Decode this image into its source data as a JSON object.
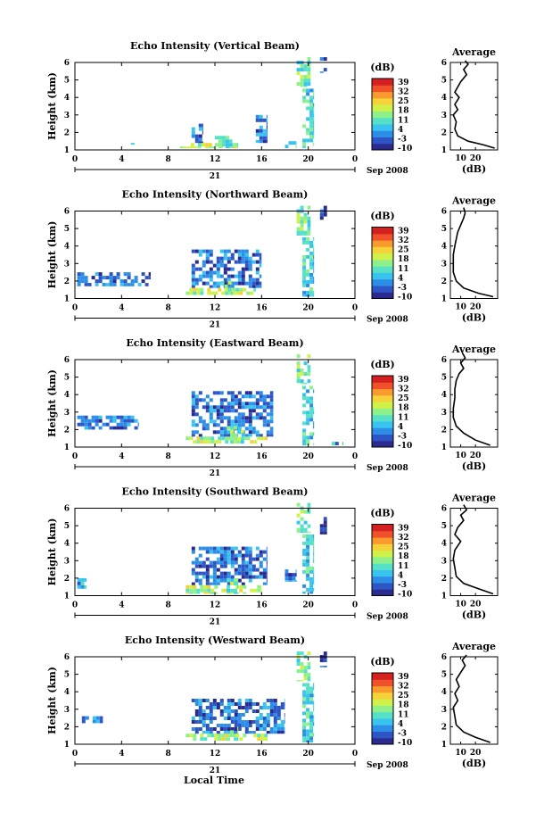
{
  "figure": {
    "xlabel": "Local Time",
    "date_label": "Sep 2008",
    "day_label": "21"
  },
  "colorbar": {
    "unit": "(dB)",
    "ticks": [
      "39",
      "32",
      "25",
      "18",
      "11",
      "4",
      "-3",
      "-10"
    ],
    "colors": [
      "#2b2a8f",
      "#2d55c6",
      "#2d8ee8",
      "#39c4f0",
      "#56e0c8",
      "#8ef08a",
      "#d0f04a",
      "#f6d23a",
      "#f89a2e",
      "#f0502a",
      "#d42020"
    ]
  },
  "chart_data": [
    {
      "type": "heatmap",
      "title": "Echo Intensity (Vertical Beam)",
      "ylabel": "Height (km)",
      "xlim": [
        0,
        24
      ],
      "ylim": [
        1,
        6
      ],
      "xticks": [
        "0",
        "4",
        "8",
        "12",
        "16",
        "20",
        "0"
      ],
      "yticks": [
        "1",
        "2",
        "3",
        "4",
        "5",
        "6"
      ],
      "regions": [
        {
          "x": [
            9,
            14
          ],
          "y": [
            1.1,
            1.4
          ],
          "level": 6
        },
        {
          "x": [
            12,
            13.5
          ],
          "y": [
            1.1,
            1.8
          ],
          "level": 5
        },
        {
          "x": [
            10,
            11
          ],
          "y": [
            1.4,
            2.5
          ],
          "level": 2
        },
        {
          "x": [
            15.5,
            16.5
          ],
          "y": [
            1.4,
            3.0
          ],
          "level": 2
        },
        {
          "x": [
            18,
            19
          ],
          "y": [
            1.1,
            1.5
          ],
          "level": 4
        },
        {
          "x": [
            19.5,
            20.5
          ],
          "y": [
            1.1,
            4.5
          ],
          "level": 4
        },
        {
          "x": [
            19,
            20.2
          ],
          "y": [
            4.6,
            6.3
          ],
          "level": 5
        },
        {
          "x": [
            21,
            21.6
          ],
          "y": [
            5.4,
            6.3
          ],
          "level": 1
        },
        {
          "x": [
            4.8,
            5.3
          ],
          "y": [
            1.3,
            1.6
          ],
          "level": 4
        },
        {
          "x": [
            3,
            3.2
          ],
          "y": [
            2.0,
            2.2
          ],
          "level": 2
        }
      ]
    },
    {
      "type": "heatmap",
      "title": "Echo Intensity (Northward Beam)",
      "ylabel": "Height (km)",
      "xlim": [
        0,
        24
      ],
      "ylim": [
        1,
        6
      ],
      "xticks": [
        "0",
        "4",
        "8",
        "12",
        "16",
        "20",
        "0"
      ],
      "yticks": [
        "1",
        "2",
        "3",
        "4",
        "5",
        "6"
      ],
      "regions": [
        {
          "x": [
            0.2,
            6.5
          ],
          "y": [
            1.7,
            2.5
          ],
          "level": 2
        },
        {
          "x": [
            9.5,
            15.5
          ],
          "y": [
            1.2,
            1.6
          ],
          "level": 6
        },
        {
          "x": [
            10,
            16
          ],
          "y": [
            1.6,
            3.8
          ],
          "level": 2
        },
        {
          "x": [
            12.5,
            13.5
          ],
          "y": [
            1.2,
            2.0
          ],
          "level": 5
        },
        {
          "x": [
            19.5,
            20.5
          ],
          "y": [
            1.1,
            4.5
          ],
          "level": 4
        },
        {
          "x": [
            19,
            20.2
          ],
          "y": [
            4.6,
            6.3
          ],
          "level": 5
        },
        {
          "x": [
            21,
            21.6
          ],
          "y": [
            5.5,
            6.3
          ],
          "level": 1
        }
      ]
    },
    {
      "type": "heatmap",
      "title": "Echo Intensity (Eastward Beam)",
      "ylabel": "Height (km)",
      "xlim": [
        0,
        24
      ],
      "ylim": [
        1,
        6
      ],
      "xticks": [
        "0",
        "4",
        "8",
        "12",
        "16",
        "20",
        "0"
      ],
      "yticks": [
        "1",
        "2",
        "3",
        "4",
        "5",
        "6"
      ],
      "regions": [
        {
          "x": [
            0.2,
            5.5
          ],
          "y": [
            2.0,
            2.8
          ],
          "level": 2
        },
        {
          "x": [
            9.5,
            16.5
          ],
          "y": [
            1.2,
            1.6
          ],
          "level": 6
        },
        {
          "x": [
            10,
            17
          ],
          "y": [
            1.6,
            4.2
          ],
          "level": 2
        },
        {
          "x": [
            13,
            14.5
          ],
          "y": [
            1.2,
            2.2
          ],
          "level": 5
        },
        {
          "x": [
            19.5,
            20.5
          ],
          "y": [
            1.1,
            4.5
          ],
          "level": 4
        },
        {
          "x": [
            19,
            20.2
          ],
          "y": [
            4.6,
            6.3
          ],
          "level": 5
        },
        {
          "x": [
            22,
            23
          ],
          "y": [
            1.1,
            1.3
          ],
          "level": 3
        }
      ]
    },
    {
      "type": "heatmap",
      "title": "Echo Intensity (Southward Beam)",
      "ylabel": "Height (km)",
      "xlim": [
        0,
        24
      ],
      "ylim": [
        1,
        6
      ],
      "xticks": [
        "0",
        "4",
        "8",
        "12",
        "16",
        "20",
        "0"
      ],
      "yticks": [
        "1",
        "2",
        "3",
        "4",
        "5",
        "6"
      ],
      "regions": [
        {
          "x": [
            0.2,
            1.0
          ],
          "y": [
            1.4,
            2.0
          ],
          "level": 3
        },
        {
          "x": [
            9.5,
            16
          ],
          "y": [
            1.1,
            1.6
          ],
          "level": 6
        },
        {
          "x": [
            10,
            16.5
          ],
          "y": [
            1.6,
            3.8
          ],
          "level": 2
        },
        {
          "x": [
            13,
            14
          ],
          "y": [
            1.1,
            2.0
          ],
          "level": 5
        },
        {
          "x": [
            18,
            19
          ],
          "y": [
            1.8,
            2.5
          ],
          "level": 2
        },
        {
          "x": [
            19.5,
            20.5
          ],
          "y": [
            1.1,
            4.5
          ],
          "level": 4
        },
        {
          "x": [
            19,
            20.2
          ],
          "y": [
            4.6,
            6.3
          ],
          "level": 5
        },
        {
          "x": [
            21,
            21.6
          ],
          "y": [
            4.5,
            5.5
          ],
          "level": 1
        }
      ]
    },
    {
      "type": "heatmap",
      "title": "Echo Intensity (Westward Beam)",
      "ylabel": "Height (km)",
      "xlim": [
        0,
        24
      ],
      "ylim": [
        1,
        6
      ],
      "xticks": [
        "0",
        "4",
        "8",
        "12",
        "16",
        "20",
        "0"
      ],
      "yticks": [
        "1",
        "2",
        "3",
        "4",
        "5",
        "6"
      ],
      "regions": [
        {
          "x": [
            0.6,
            2.4
          ],
          "y": [
            2.2,
            2.6
          ],
          "level": 2
        },
        {
          "x": [
            9.5,
            16.5
          ],
          "y": [
            1.2,
            1.6
          ],
          "level": 6
        },
        {
          "x": [
            10,
            18
          ],
          "y": [
            1.6,
            3.6
          ],
          "level": 2
        },
        {
          "x": [
            13,
            14
          ],
          "y": [
            1.2,
            2.0
          ],
          "level": 5
        },
        {
          "x": [
            19.5,
            20.5
          ],
          "y": [
            1.1,
            4.5
          ],
          "level": 4
        },
        {
          "x": [
            19,
            20.2
          ],
          "y": [
            4.6,
            6.3
          ],
          "level": 5
        },
        {
          "x": [
            21,
            21.6
          ],
          "y": [
            5.4,
            6.3
          ],
          "level": 1
        }
      ]
    },
    {
      "type": "line",
      "title": "Average",
      "xlabel": "(dB)",
      "xlim": [
        3,
        35
      ],
      "ylim": [
        1,
        6
      ],
      "xticks": [
        "10",
        "20"
      ],
      "yticks": [
        "1",
        "2",
        "3",
        "4",
        "5",
        "6"
      ],
      "x": [
        33,
        25,
        15,
        8,
        6,
        7,
        5,
        8,
        6,
        9,
        6,
        8,
        10,
        14,
        12,
        15,
        13
      ],
      "y": [
        1.1,
        1.3,
        1.5,
        1.8,
        2.2,
        2.6,
        3.0,
        3.3,
        3.6,
        4.0,
        4.3,
        4.6,
        4.9,
        5.3,
        5.6,
        5.9,
        6.1
      ]
    },
    {
      "type": "line",
      "title": "Average",
      "xlabel": "(dB)",
      "xlim": [
        3,
        35
      ],
      "ylim": [
        1,
        6
      ],
      "xticks": [
        "10",
        "20"
      ],
      "yticks": [
        "1",
        "2",
        "3",
        "4",
        "5",
        "6"
      ],
      "x": [
        32,
        22,
        12,
        7,
        5,
        5,
        5,
        6,
        7,
        8,
        10,
        12,
        13,
        12
      ],
      "y": [
        1.1,
        1.3,
        1.6,
        2.0,
        2.5,
        3.0,
        3.5,
        4.0,
        4.4,
        4.8,
        5.2,
        5.6,
        5.9,
        6.2
      ]
    },
    {
      "type": "line",
      "title": "Average",
      "xlabel": "(dB)",
      "xlim": [
        3,
        35
      ],
      "ylim": [
        1,
        6
      ],
      "xticks": [
        "10",
        "20"
      ],
      "yticks": [
        "1",
        "2",
        "3",
        "4",
        "5",
        "6"
      ],
      "x": [
        30,
        20,
        12,
        7,
        5,
        5,
        6,
        6,
        7,
        9,
        12,
        10,
        13,
        11
      ],
      "y": [
        1.1,
        1.4,
        1.8,
        2.2,
        2.7,
        3.2,
        3.8,
        4.3,
        4.8,
        5.2,
        5.5,
        5.8,
        6.1,
        6.4
      ]
    },
    {
      "type": "line",
      "title": "Average",
      "xlabel": "(dB)",
      "xlim": [
        3,
        35
      ],
      "ylim": [
        1,
        6
      ],
      "xticks": [
        "10",
        "20"
      ],
      "yticks": [
        "1",
        "2",
        "3",
        "4",
        "5",
        "6"
      ],
      "x": [
        32,
        22,
        12,
        7,
        6,
        5,
        6,
        10,
        6,
        8,
        12,
        10,
        14,
        12
      ],
      "y": [
        1.1,
        1.4,
        1.7,
        2.1,
        2.6,
        3.1,
        3.6,
        4.1,
        4.5,
        4.9,
        5.3,
        5.6,
        5.9,
        6.2
      ]
    },
    {
      "type": "line",
      "title": "Average",
      "xlabel": "(dB)",
      "xlim": [
        3,
        35
      ],
      "ylim": [
        1,
        6
      ],
      "xticks": [
        "10",
        "20"
      ],
      "yticks": [
        "1",
        "2",
        "3",
        "4",
        "5",
        "6"
      ],
      "x": [
        30,
        20,
        12,
        7,
        6,
        5,
        8,
        6,
        9,
        7,
        10,
        13,
        11,
        14
      ],
      "y": [
        1.1,
        1.4,
        1.7,
        2.1,
        2.6,
        3.1,
        3.5,
        3.9,
        4.3,
        4.7,
        5.1,
        5.5,
        5.8,
        6.1
      ]
    }
  ]
}
